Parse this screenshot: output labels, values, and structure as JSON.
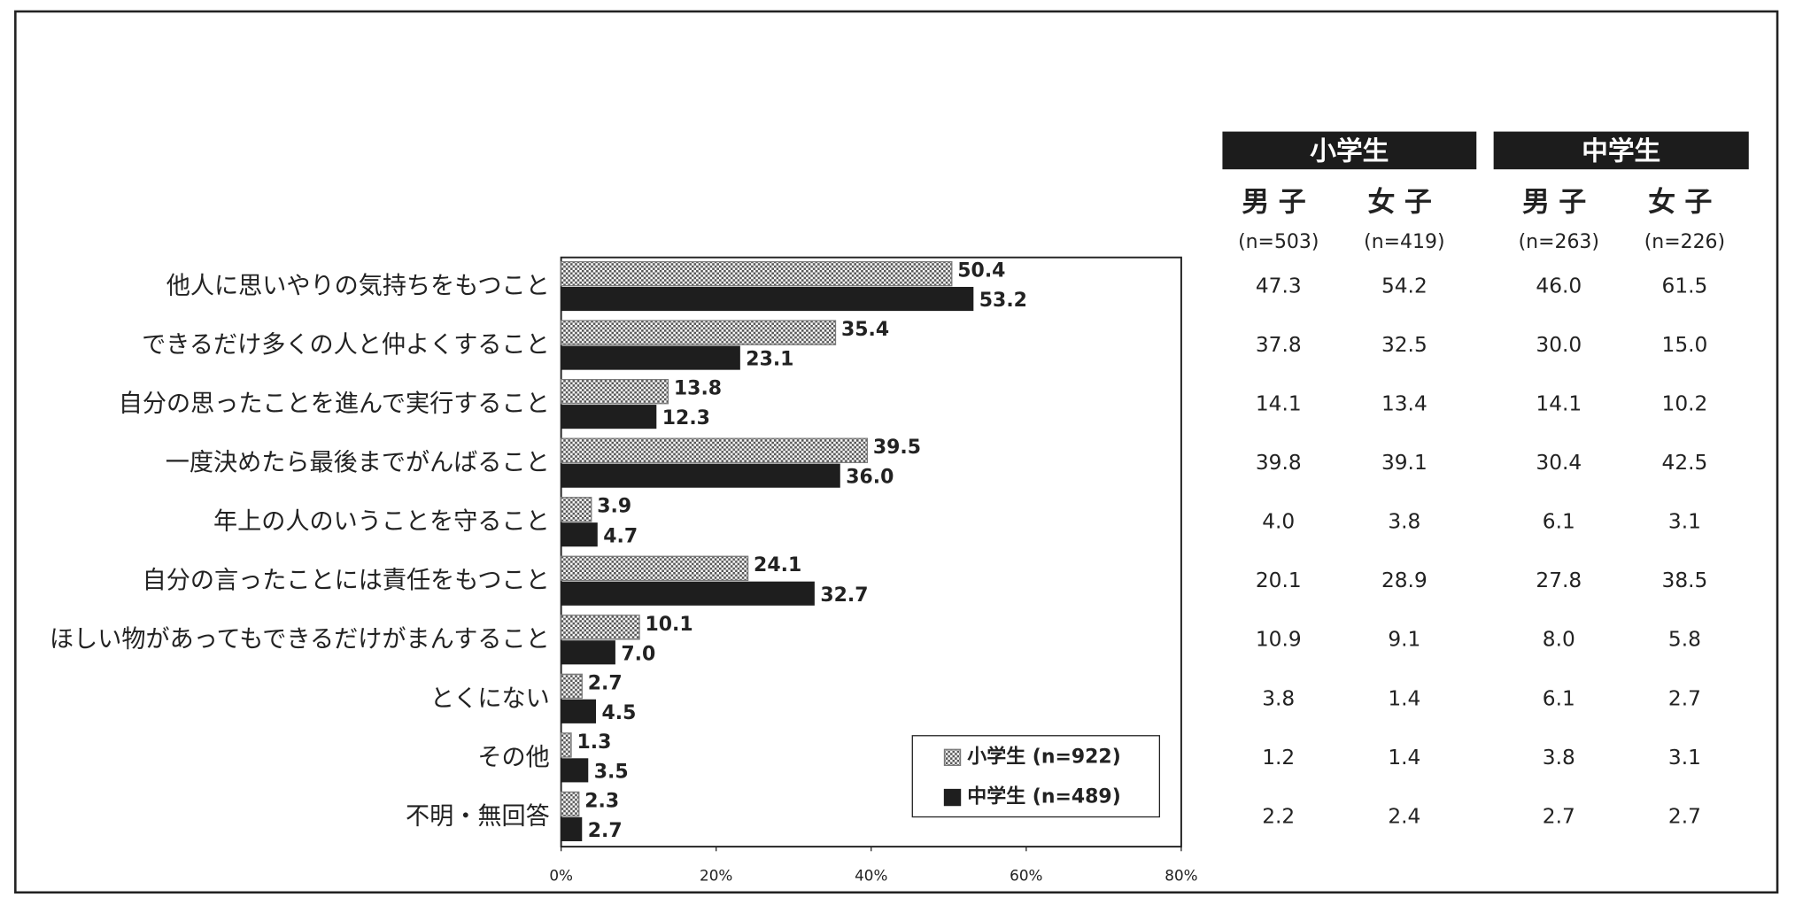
{
  "chart_data": {
    "type": "bar",
    "orientation": "horizontal",
    "categories": [
      "他人に思いやりの気持ちをもつこと",
      "できるだけ多くの人と仲よくすること",
      "自分の思ったことを進んで実行すること",
      "一度決めたら最後までがんばること",
      "年上の人のいうことを守ること",
      "自分の言ったことには責任をもつこと",
      "ほしい物があってもできるだけがまんすること",
      "とくにない",
      "その他",
      "不明・無回答"
    ],
    "series": [
      {
        "name": "小学生 (n=922)",
        "color": "#7a7a7a",
        "pattern": "checker",
        "values": [
          50.4,
          35.4,
          13.8,
          39.5,
          3.9,
          24.1,
          10.1,
          2.7,
          1.3,
          2.3
        ],
        "value_labels": [
          "50.4",
          "35.4",
          "13.8",
          "39.5",
          "3.9",
          "24.1",
          "10.1",
          "2.7",
          "1.3",
          "2.3"
        ]
      },
      {
        "name": "中学生 (n=489)",
        "color": "#1e1e1e",
        "values": [
          53.2,
          23.1,
          12.3,
          36.0,
          4.7,
          32.7,
          7.0,
          4.5,
          3.5,
          2.7
        ],
        "value_labels": [
          "53.2",
          "23.1",
          "12.3",
          "36.0",
          "4.7",
          "32.7",
          "7.0",
          "4.5",
          "3.5",
          "2.7"
        ]
      }
    ],
    "xlim": [
      0,
      80
    ],
    "xticks": [
      {
        "value": 0,
        "label": "0%"
      },
      {
        "value": 20,
        "label": "20%"
      },
      {
        "value": 40,
        "label": "40%"
      },
      {
        "value": 60,
        "label": "60%"
      },
      {
        "value": 80,
        "label": "80%"
      }
    ],
    "legend": "lower-right"
  },
  "table": {
    "groups": [
      "小学生",
      "中学生"
    ],
    "columns": [
      {
        "label": "男子",
        "n": "(n=503)"
      },
      {
        "label": "女子",
        "n": "(n=419)"
      },
      {
        "label": "男子",
        "n": "(n=263)"
      },
      {
        "label": "女子",
        "n": "(n=226)"
      }
    ],
    "rows": [
      [
        "47.3",
        "54.2",
        "46.0",
        "61.5"
      ],
      [
        "37.8",
        "32.5",
        "30.0",
        "15.0"
      ],
      [
        "14.1",
        "13.4",
        "14.1",
        "10.2"
      ],
      [
        "39.8",
        "39.1",
        "30.4",
        "42.5"
      ],
      [
        "4.0",
        "3.8",
        "6.1",
        "3.1"
      ],
      [
        "20.1",
        "28.9",
        "27.8",
        "38.5"
      ],
      [
        "10.9",
        "9.1",
        "8.0",
        "5.8"
      ],
      [
        "3.8",
        "1.4",
        "6.1",
        "2.7"
      ],
      [
        "1.2",
        "1.4",
        "3.8",
        "3.1"
      ],
      [
        "2.2",
        "2.4",
        "2.7",
        "2.7"
      ]
    ]
  }
}
